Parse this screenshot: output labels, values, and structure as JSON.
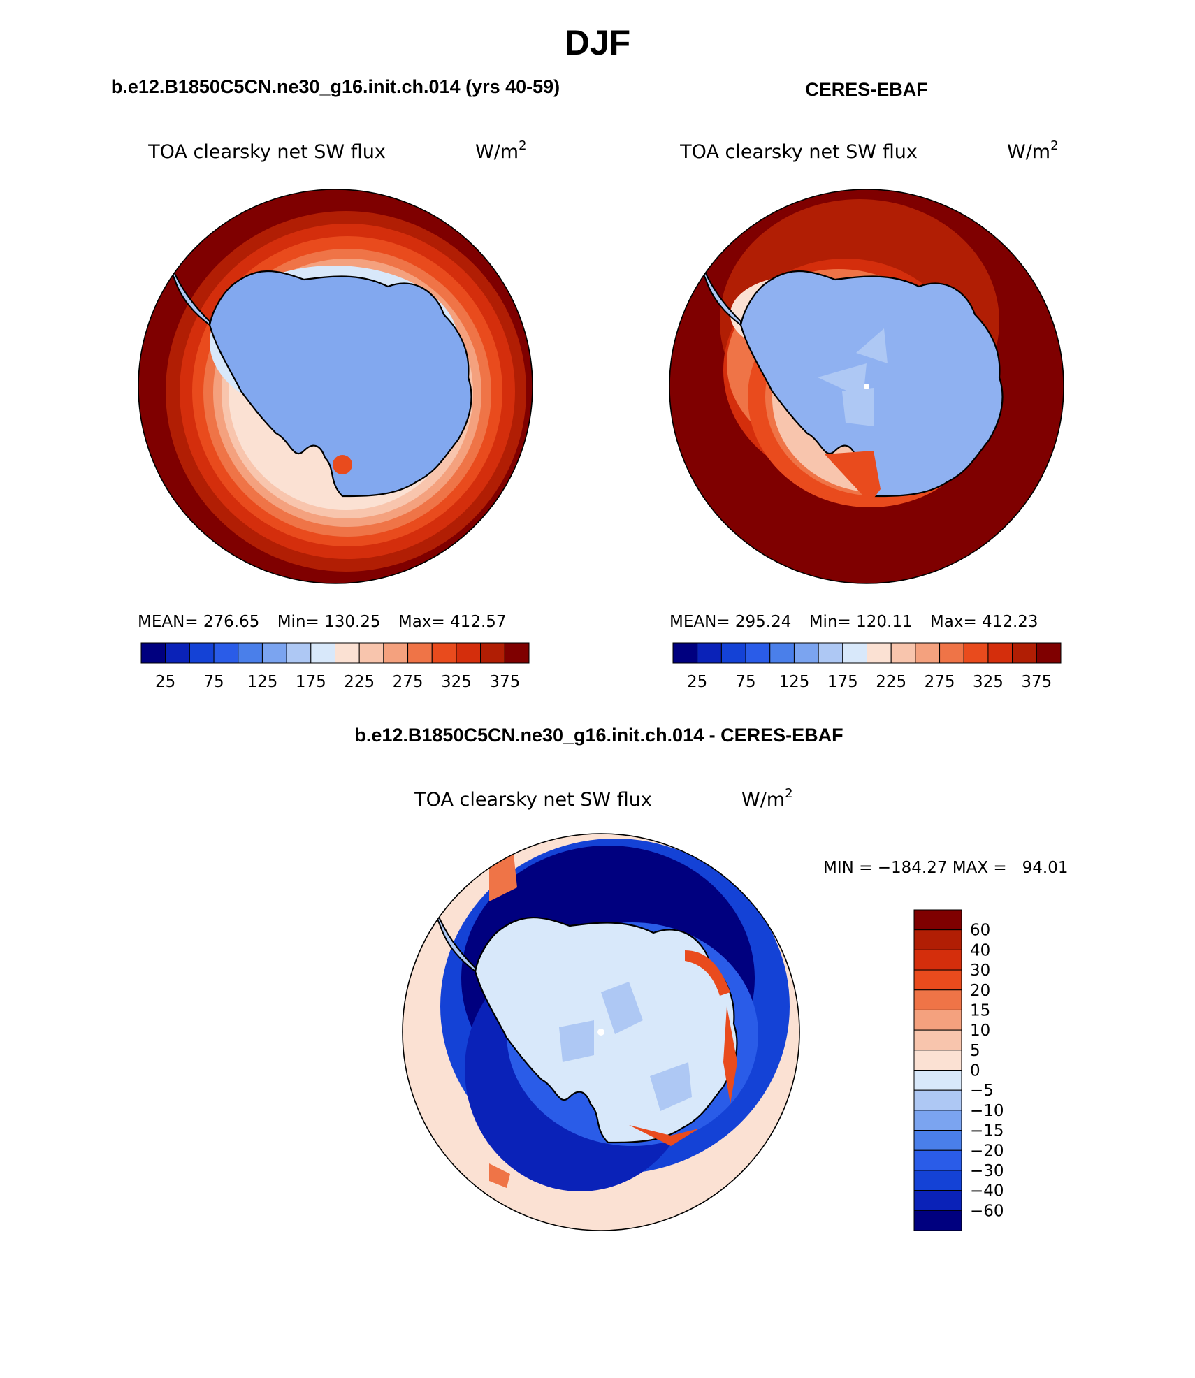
{
  "season": "DJF",
  "panels": [
    {
      "case_title": "b.e12.B1850C5CN.ne30_g16.init.ch.014 (yrs 40-59)",
      "variable": "TOA clearsky net SW flux",
      "units_base": "W/m",
      "units_exp": "2",
      "stats": {
        "mean_label": "MEAN=",
        "mean": "276.65",
        "min_label": "Min=",
        "min": "130.25",
        "max_label": "Max=",
        "max": "412.57"
      },
      "colorbar_labels": [
        "25",
        "75",
        "125",
        "175",
        "225",
        "275",
        "325",
        "375"
      ]
    },
    {
      "case_title": "CERES-EBAF",
      "variable": "TOA clearsky net SW flux",
      "units_base": "W/m",
      "units_exp": "2",
      "stats": {
        "mean_label": "MEAN=",
        "mean": "295.24",
        "min_label": "Min=",
        "min": "120.11",
        "max_label": "Max=",
        "max": "412.23"
      },
      "colorbar_labels": [
        "25",
        "75",
        "125",
        "175",
        "225",
        "275",
        "325",
        "375"
      ]
    }
  ],
  "diff": {
    "title": "b.e12.B1850C5CN.ne30_g16.init.ch.014 - CERES-EBAF",
    "variable": "TOA clearsky net SW flux",
    "units_base": "W/m",
    "units_exp": "2",
    "minmax_text": "MIN = −184.27 MAX =   94.01",
    "colorbar_labels": [
      "60",
      "40",
      "30",
      "20",
      "15",
      "10",
      "5",
      "0",
      "−5",
      "−10",
      "−15",
      "−20",
      "−30",
      "−40",
      "−60"
    ]
  },
  "colors": {
    "abs_scale": [
      "#00007f",
      "#0a22b8",
      "#1442d6",
      "#2a5ce8",
      "#4a7fea",
      "#7ba4f0",
      "#aec8f4",
      "#d8e8fa",
      "#fbe1d3",
      "#f8c5ad",
      "#f4a17e",
      "#ef7447",
      "#e94b1d",
      "#d42e0c",
      "#b11e04",
      "#7f0000"
    ],
    "diff_scale": [
      "#7f0000",
      "#b11e04",
      "#d42e0c",
      "#e94b1d",
      "#ef7447",
      "#f4a17e",
      "#f8c5ad",
      "#fbe1d3",
      "#d8e8fa",
      "#aec8f4",
      "#7ba4f0",
      "#4a7fea",
      "#2a5ce8",
      "#1442d6",
      "#0a22b8",
      "#00007f"
    ],
    "continent_model": "#82a8ef",
    "continent_obs": "#8fb1f1",
    "coast": "#000000"
  }
}
